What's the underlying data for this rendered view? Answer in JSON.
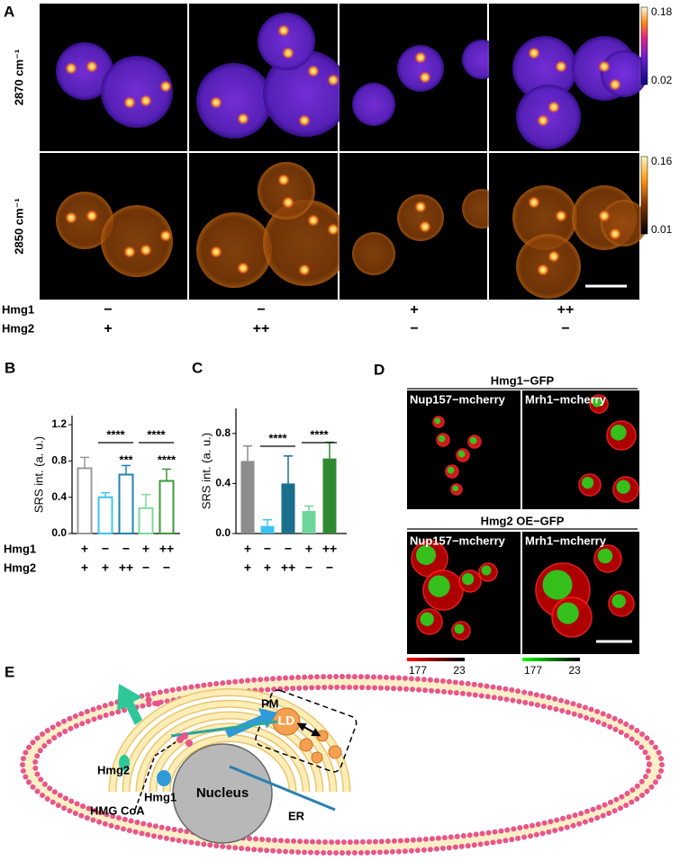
{
  "panel_a": {
    "label": "A",
    "row_labels": [
      "2870 cm⁻¹",
      "2850 cm⁻¹"
    ],
    "colorbars": [
      {
        "max": 0.18,
        "min": 0.02
      },
      {
        "max": 0.16,
        "min": 0.01
      }
    ],
    "conditions": [
      {
        "name": "Hmg1",
        "values": [
          "−",
          "−",
          "+",
          "++"
        ]
      },
      {
        "name": "Hmg2",
        "values": [
          "+",
          "++",
          "−",
          "−"
        ]
      }
    ]
  },
  "chart_data": [
    {
      "type": "bar",
      "panel": "B",
      "ylabel": "SRS int. (a. u.)",
      "ylim": [
        0,
        1.3
      ],
      "yticks": [
        {
          "value": 0,
          "label": "0.0"
        },
        0.4,
        0.8,
        1.2
      ],
      "bar_style": "hollow",
      "values": [
        0.72,
        0.4,
        0.65,
        0.28,
        0.58
      ],
      "errors": [
        0.12,
        0.05,
        0.1,
        0.15,
        0.13
      ],
      "colors": [
        "#9a9a9a",
        "#3cc4f0",
        "#1d86b0",
        "#7fd99a",
        "#3f9a3a"
      ],
      "annotations": [
        "****",
        "***",
        "****",
        "****"
      ],
      "conditions": [
        {
          "name": "Hmg1",
          "values": [
            "+",
            "−",
            "−",
            "+",
            "++"
          ]
        },
        {
          "name": "Hmg2",
          "values": [
            "+",
            "+",
            "++",
            "−",
            "−"
          ]
        }
      ]
    },
    {
      "type": "bar",
      "panel": "C",
      "ylabel": "SRS int. (a. u.)",
      "ylim": [
        0,
        1.0
      ],
      "yticks": [
        {
          "value": 0,
          "label": "0.0"
        },
        0.4,
        0.8
      ],
      "bar_style": "filled",
      "values": [
        0.58,
        0.06,
        0.4,
        0.18,
        0.6
      ],
      "errors": [
        0.12,
        0.05,
        0.22,
        0.04,
        0.13
      ],
      "colors": [
        "#8c8c8c",
        "#3cc4f0",
        "#1a6e8e",
        "#6ed69a",
        "#2f8a2f"
      ],
      "annotations": [
        "****",
        "****"
      ],
      "conditions": [
        {
          "name": "Hmg1",
          "values": [
            "+",
            "−",
            "−",
            "+",
            "++"
          ]
        },
        {
          "name": "Hmg2",
          "values": [
            "+",
            "+",
            "++",
            "−",
            "−"
          ]
        }
      ]
    }
  ],
  "panel_d": {
    "label": "D",
    "groups": [
      {
        "title": "Hmg1−GFP",
        "images": [
          "Nup157−mcherry",
          "Mrh1−mcherry"
        ]
      },
      {
        "title": "Hmg2 OE−GFP",
        "images": [
          "Nup157−mcherry",
          "Mrh1−mcherry"
        ]
      }
    ],
    "colorbars": [
      {
        "max": 177,
        "min": 23
      },
      {
        "max": 177,
        "min": 23
      }
    ]
  },
  "panel_e": {
    "label": "E",
    "labels": {
      "pm": "PM",
      "ld": "LD",
      "hmg2": "Hmg2",
      "hmg_coa": "HMG CoA",
      "hmg1": "Hmg1",
      "nucleus": "Nucleus",
      "er": "ER"
    }
  }
}
